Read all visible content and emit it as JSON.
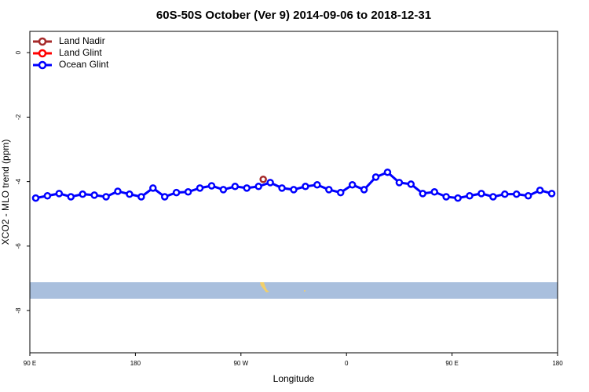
{
  "chart_data": {
    "type": "line",
    "title": "60S-50S October (Ver 9)   2014-09-06 to 2018-12-31",
    "x_label": "Longitude",
    "y_label": "XCO2 - MLO trend (ppm)",
    "xlim": [
      90,
      540
    ],
    "xticks": [
      {
        "value": 90,
        "label": "90 E"
      },
      180,
      {
        "value": 270,
        "label": "90 W"
      },
      {
        "value": 360,
        "label": "0"
      },
      {
        "value": 450,
        "label": "90 E"
      },
      {
        "value": 540,
        "label": "180"
      }
    ],
    "ylim": [
      -9.31,
      0.66
    ],
    "yticks": [
      0,
      -2,
      -4,
      -6,
      -8
    ],
    "legend": "top-left",
    "series": [
      {
        "name": "Land Nadir",
        "color": "#a52a2a",
        "x": [
          289
        ],
        "values": [
          -3.93
        ]
      },
      {
        "name": "Land Glint",
        "color": "#ff0000",
        "x": [],
        "values": []
      },
      {
        "name": "Ocean Glint",
        "color": "#0000ff",
        "x": [
          95,
          105,
          115,
          125,
          135,
          145,
          155,
          165,
          175,
          185,
          195,
          205,
          215,
          225,
          235,
          245,
          255,
          265,
          275,
          285,
          295,
          305,
          315,
          325,
          335,
          345,
          355,
          365,
          375,
          385,
          395,
          405,
          415,
          425,
          435,
          445,
          455,
          465,
          475,
          485,
          495,
          505,
          515,
          525,
          535
        ],
        "values": [
          -4.51,
          -4.44,
          -4.37,
          -4.47,
          -4.39,
          -4.42,
          -4.47,
          -4.3,
          -4.39,
          -4.47,
          -4.2,
          -4.47,
          -4.34,
          -4.32,
          -4.2,
          -4.13,
          -4.25,
          -4.15,
          -4.2,
          -4.15,
          -4.03,
          -4.2,
          -4.25,
          -4.15,
          -4.1,
          -4.25,
          -4.34,
          -4.1,
          -4.25,
          -3.86,
          -3.71,
          -4.03,
          -4.08,
          -4.37,
          -4.32,
          -4.47,
          -4.51,
          -4.44,
          -4.37,
          -4.47,
          -4.39,
          -4.39,
          -4.44,
          -4.27,
          -4.37
        ]
      }
    ]
  }
}
